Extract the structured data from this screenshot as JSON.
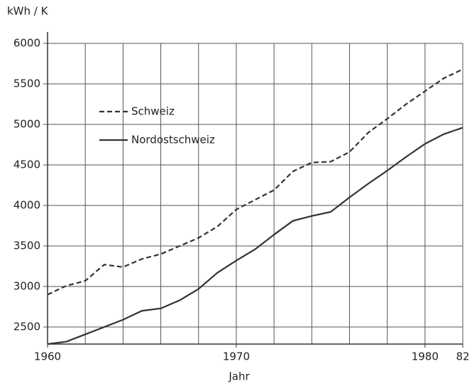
{
  "chart_data": {
    "type": "line",
    "y_label": "kWh / K",
    "x_label": "Jahr",
    "x": [
      1960,
      1961,
      1962,
      1963,
      1964,
      1965,
      1966,
      1967,
      1968,
      1969,
      1970,
      1971,
      1972,
      1973,
      1974,
      1975,
      1976,
      1977,
      1978,
      1979,
      1980,
      1981,
      1982
    ],
    "series": [
      {
        "name": "Schweiz",
        "color": "#333333",
        "dashed": true,
        "values": [
          2900,
          3010,
          3070,
          3270,
          3240,
          3340,
          3400,
          3500,
          3600,
          3740,
          3950,
          4070,
          4190,
          4420,
          4530,
          4540,
          4660,
          4900,
          5070,
          5250,
          5410,
          5570,
          5680
        ]
      },
      {
        "name": "Nordostschweiz",
        "color": "#333333",
        "dashed": false,
        "values": [
          2290,
          2320,
          2410,
          2500,
          2590,
          2700,
          2730,
          2830,
          2970,
          3170,
          3320,
          3460,
          3640,
          3810,
          3870,
          3920,
          4100,
          4270,
          4430,
          4600,
          4760,
          4880,
          4960
        ]
      }
    ],
    "xlim": [
      1960,
      1982
    ],
    "ylim": [
      2290,
      6140
    ],
    "xticks": [
      1960,
      1970,
      1980,
      {
        "value": 1982,
        "label": "82"
      }
    ],
    "xgrid": [
      1960,
      1962,
      1964,
      1966,
      1968,
      1970,
      1972,
      1974,
      1976,
      1978,
      1980,
      1982
    ],
    "yticks": [
      2500,
      3000,
      3500,
      4000,
      4500,
      5000,
      5500,
      6000
    ],
    "grid": true,
    "legend": "upper left"
  }
}
